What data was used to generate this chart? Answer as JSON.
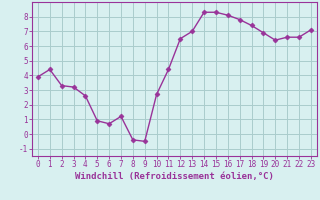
{
  "x": [
    0,
    1,
    2,
    3,
    4,
    5,
    6,
    7,
    8,
    9,
    10,
    11,
    12,
    13,
    14,
    15,
    16,
    17,
    18,
    19,
    20,
    21,
    22,
    23
  ],
  "y": [
    3.9,
    4.4,
    3.3,
    3.2,
    2.6,
    0.9,
    0.7,
    1.2,
    -0.4,
    -0.5,
    2.7,
    4.4,
    6.5,
    7.0,
    8.3,
    8.3,
    8.1,
    7.8,
    7.4,
    6.9,
    6.4,
    6.6,
    6.6,
    7.1
  ],
  "line_color": "#993399",
  "marker": "D",
  "marker_size": 2.5,
  "bg_color": "#d8f0f0",
  "grid_color": "#aacccc",
  "xlabel": "Windchill (Refroidissement éolien,°C)",
  "xlim": [
    -0.5,
    23.5
  ],
  "ylim": [
    -1.5,
    9.0
  ],
  "yticks": [
    -1,
    0,
    1,
    2,
    3,
    4,
    5,
    6,
    7,
    8
  ],
  "xticks": [
    0,
    1,
    2,
    3,
    4,
    5,
    6,
    7,
    8,
    9,
    10,
    11,
    12,
    13,
    14,
    15,
    16,
    17,
    18,
    19,
    20,
    21,
    22,
    23
  ],
  "tick_label_size": 5.5,
  "xlabel_size": 6.5,
  "spine_color": "#993399",
  "line_width": 1.0
}
